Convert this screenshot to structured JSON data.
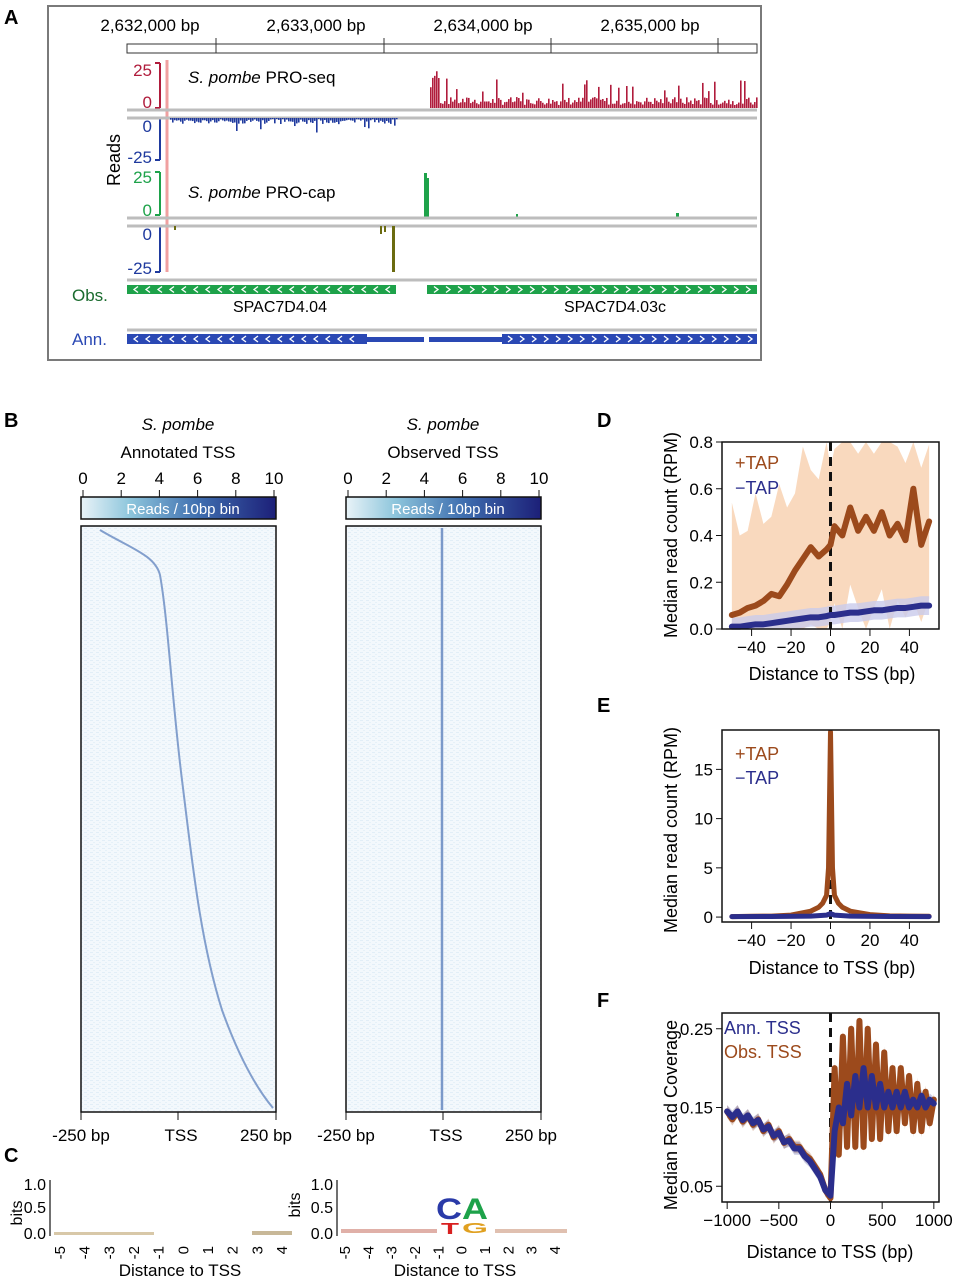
{
  "panel_letters": {
    "a": "A",
    "b": "B",
    "c": "C",
    "d": "D",
    "e": "E",
    "f": "F"
  },
  "panel_a": {
    "coord_ticks": [
      "2,632,000 bp",
      "2,633,000 bp",
      "2,634,000 bp",
      "2,635,000 bp"
    ],
    "reads_label": "Reads",
    "proseq_species": "S. pombe",
    "proseq_name": " PRO-seq",
    "procap_species": "S. pombe",
    "procap_name": " PRO-cap",
    "ticks": {
      "p25": "25",
      "zero": "0",
      "m25": "-25"
    },
    "obs_label": "Obs.",
    "ann_label": "Ann.",
    "gene_left": "SPAC7D4.04",
    "gene_right": "SPAC7D4.03c",
    "colors": {
      "plus_seq": "#b01c3c",
      "minus": "#1f3a9e",
      "plus_cap": "#1ea24a",
      "minus_cap": "#6b6b10",
      "obs": "#1ea24a",
      "ann": "#2a48b4"
    }
  },
  "panel_b": {
    "left": {
      "species": "S. pombe",
      "title": "Annotated TSS"
    },
    "right": {
      "species": "S. pombe",
      "title": "Observed TSS"
    },
    "colorbar_ticks": [
      "0",
      "2",
      "4",
      "6",
      "8",
      "10"
    ],
    "colorbar_label": "Reads / 10bp bin",
    "x_ticks": [
      "-250 bp",
      "TSS",
      "250 bp"
    ]
  },
  "panel_c": {
    "ylabel": "bits",
    "yticks": [
      "1.0",
      "0.5",
      "0.0"
    ],
    "xticks": [
      "-5",
      "-4",
      "-3",
      "-2",
      "-1",
      "0",
      "1",
      "2",
      "3",
      "4"
    ],
    "xlabel": "Distance to TSS"
  },
  "chart_data": [
    {
      "panel": "D",
      "type": "line",
      "xlabel": "Distance to TSS (bp)",
      "ylabel": "Median read count (RPM)",
      "xlim": [
        -55,
        55
      ],
      "ylim": [
        0,
        0.8
      ],
      "xticks": [
        -40,
        -20,
        0,
        20,
        40
      ],
      "yticks": [
        0.0,
        0.2,
        0.4,
        0.6,
        0.8
      ],
      "legend": [
        "+TAP",
        "−TAP"
      ],
      "legend_position": "top-left",
      "series": [
        {
          "name": "+TAP",
          "color": "#9c4a1c",
          "band": "#f7cfae",
          "x": [
            -50,
            -46,
            -42,
            -38,
            -34,
            -30,
            -26,
            -22,
            -18,
            -14,
            -10,
            -6,
            -2,
            0,
            2,
            6,
            10,
            14,
            18,
            22,
            26,
            30,
            34,
            38,
            42,
            46,
            50
          ],
          "y": [
            0.06,
            0.07,
            0.09,
            0.1,
            0.12,
            0.15,
            0.14,
            0.19,
            0.25,
            0.3,
            0.35,
            0.31,
            0.34,
            0.36,
            0.44,
            0.4,
            0.52,
            0.42,
            0.48,
            0.42,
            0.5,
            0.4,
            0.45,
            0.38,
            0.6,
            0.36,
            0.46
          ]
        },
        {
          "name": "−TAP",
          "color": "#2b2e8c",
          "band": "#c9cbeb",
          "x": [
            -50,
            -46,
            -42,
            -38,
            -34,
            -30,
            -26,
            -22,
            -18,
            -14,
            -10,
            -6,
            -2,
            0,
            2,
            6,
            10,
            14,
            18,
            22,
            26,
            30,
            34,
            38,
            42,
            46,
            50
          ],
          "y": [
            0.01,
            0.01,
            0.015,
            0.02,
            0.02,
            0.025,
            0.03,
            0.035,
            0.04,
            0.045,
            0.05,
            0.05,
            0.055,
            0.06,
            0.06,
            0.065,
            0.07,
            0.07,
            0.075,
            0.08,
            0.08,
            0.085,
            0.09,
            0.09,
            0.095,
            0.1,
            0.1
          ]
        }
      ]
    },
    {
      "panel": "E",
      "type": "line",
      "xlabel": "Distance to TSS (bp)",
      "ylabel": "Median read count (RPM)",
      "xlim": [
        -55,
        55
      ],
      "ylim": [
        -0.5,
        19
      ],
      "xticks": [
        -40,
        -20,
        0,
        20,
        40
      ],
      "yticks": [
        0,
        5,
        10,
        15
      ],
      "legend": [
        "+TAP",
        "−TAP"
      ],
      "legend_position": "top-left",
      "series": [
        {
          "name": "+TAP",
          "color": "#9c4a1c",
          "x": [
            -50,
            -40,
            -30,
            -20,
            -10,
            -6,
            -4,
            -2,
            -1,
            0,
            1,
            2,
            4,
            6,
            10,
            20,
            30,
            40,
            50
          ],
          "y": [
            0.05,
            0.08,
            0.1,
            0.2,
            0.6,
            1.0,
            1.4,
            2.2,
            5.0,
            18.8,
            5.0,
            2.2,
            1.4,
            1.0,
            0.6,
            0.25,
            0.12,
            0.1,
            0.08
          ]
        },
        {
          "name": "−TAP",
          "color": "#2b2e8c",
          "x": [
            -50,
            -30,
            -10,
            -2,
            0,
            2,
            10,
            30,
            50
          ],
          "y": [
            0.05,
            0.06,
            0.1,
            0.2,
            0.35,
            0.2,
            0.1,
            0.06,
            0.05
          ]
        }
      ]
    },
    {
      "panel": "F",
      "type": "line",
      "xlabel": "Distance to TSS (bp)",
      "ylabel": "Median Read Coverage",
      "xlim": [
        -1050,
        1050
      ],
      "ylim": [
        0.03,
        0.27
      ],
      "xticks": [
        -1000,
        -500,
        0,
        500,
        1000
      ],
      "yticks": [
        0.05,
        0.15,
        0.25
      ],
      "legend": [
        "Ann. TSS",
        "Obs. TSS"
      ],
      "legend_position": "top-left",
      "series": [
        {
          "name": "Obs. TSS",
          "color": "#9c4a1c",
          "x": [
            -1000,
            -950,
            -900,
            -850,
            -800,
            -750,
            -700,
            -650,
            -600,
            -550,
            -500,
            -450,
            -400,
            -350,
            -300,
            -250,
            -200,
            -150,
            -100,
            -50,
            0,
            40,
            80,
            120,
            160,
            200,
            240,
            280,
            320,
            360,
            400,
            440,
            480,
            520,
            560,
            600,
            640,
            680,
            720,
            760,
            800,
            840,
            880,
            920,
            960,
            1000
          ],
          "y": [
            0.145,
            0.135,
            0.145,
            0.132,
            0.14,
            0.128,
            0.135,
            0.12,
            0.128,
            0.112,
            0.12,
            0.105,
            0.11,
            0.1,
            0.1,
            0.09,
            0.085,
            0.075,
            0.065,
            0.045,
            0.035,
            0.2,
            0.09,
            0.24,
            0.1,
            0.25,
            0.1,
            0.26,
            0.1,
            0.25,
            0.11,
            0.23,
            0.11,
            0.22,
            0.12,
            0.2,
            0.12,
            0.2,
            0.13,
            0.19,
            0.12,
            0.18,
            0.12,
            0.17,
            0.13,
            0.16
          ]
        },
        {
          "name": "Ann. TSS",
          "color": "#2b2e8c",
          "x": [
            -1000,
            -950,
            -900,
            -850,
            -800,
            -750,
            -700,
            -650,
            -600,
            -550,
            -500,
            -450,
            -400,
            -350,
            -300,
            -250,
            -200,
            -150,
            -100,
            -50,
            0,
            40,
            80,
            120,
            160,
            200,
            240,
            280,
            320,
            360,
            400,
            440,
            480,
            520,
            560,
            600,
            640,
            680,
            720,
            760,
            800,
            840,
            880,
            920,
            960,
            1000
          ],
          "y": [
            0.145,
            0.138,
            0.145,
            0.134,
            0.14,
            0.13,
            0.134,
            0.122,
            0.126,
            0.114,
            0.118,
            0.106,
            0.108,
            0.098,
            0.098,
            0.088,
            0.082,
            0.072,
            0.062,
            0.045,
            0.038,
            0.12,
            0.15,
            0.13,
            0.18,
            0.14,
            0.19,
            0.15,
            0.2,
            0.15,
            0.19,
            0.15,
            0.18,
            0.15,
            0.17,
            0.15,
            0.17,
            0.15,
            0.17,
            0.15,
            0.16,
            0.15,
            0.165,
            0.15,
            0.16,
            0.155
          ]
        }
      ]
    }
  ]
}
